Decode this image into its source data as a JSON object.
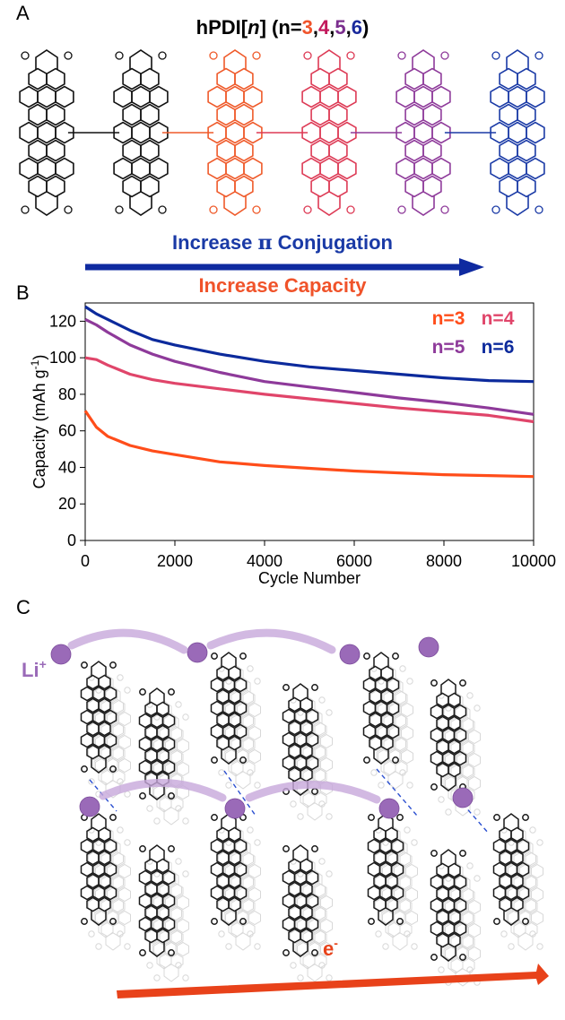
{
  "panels": {
    "a": "A",
    "b": "B",
    "c": "C"
  },
  "molecule": {
    "name": "hPDI",
    "n_symbol": "n",
    "n_prefix": "(n=",
    "n_values": [
      "3",
      "4",
      "5",
      "6"
    ],
    "n_value_colors": [
      "#f0532a",
      "#c2185b",
      "#7b2e8e",
      "#1a2a9c"
    ],
    "suffix": ")",
    "unit_colors": [
      "#111111",
      "#111111",
      "#ef5a2a",
      "#dd3a55",
      "#8e3a9a",
      "#1a3aa6"
    ]
  },
  "banner": {
    "conjugation_prefix": "Increase ",
    "conjugation_pi": "π",
    "conjugation_suffix": " Conjugation",
    "conjugation_color": "#1a3aa6",
    "capacity": "Increase  Capacity",
    "capacity_color": "#f0532a",
    "arrow_color": "#0f2aa0"
  },
  "chart_data": {
    "type": "line",
    "xlabel": "Cycle Number",
    "ylabel": "Capacity (mAh g",
    "ylabel_sup": "-1",
    "ylabel_close": ")",
    "xlim": [
      0,
      10000
    ],
    "ylim": [
      0,
      130
    ],
    "xticks": [
      0,
      2000,
      4000,
      6000,
      8000,
      10000
    ],
    "yticks": [
      0,
      20,
      40,
      60,
      80,
      100,
      120
    ],
    "grid": false,
    "legend_position": "top-right",
    "x": [
      0,
      250,
      500,
      1000,
      1500,
      2000,
      3000,
      4000,
      5000,
      6000,
      7000,
      8000,
      9000,
      10000
    ],
    "series": [
      {
        "name": "n=3",
        "color": "#ff4d1a",
        "values": [
          71,
          62,
          57,
          52,
          49,
          47,
          43,
          41,
          39.5,
          38,
          37,
          36,
          35.5,
          35
        ]
      },
      {
        "name": "n=4",
        "color": "#e0456a",
        "values": [
          100,
          99,
          96,
          91,
          88,
          86,
          83,
          80,
          77.5,
          75,
          72.5,
          70.5,
          68.5,
          65
        ]
      },
      {
        "name": "n=5",
        "color": "#8e3a9a",
        "values": [
          121,
          118,
          114,
          107,
          102,
          98,
          92,
          87,
          84,
          81,
          78,
          75.5,
          72.5,
          69
        ]
      },
      {
        "name": "n=6",
        "color": "#0c2a9c",
        "values": [
          128,
          124,
          121,
          115,
          110,
          107,
          102,
          98,
          95,
          93,
          91,
          89,
          87.5,
          87
        ]
      }
    ]
  },
  "assembly": {
    "ion_label": "Li",
    "ion_charge": "+",
    "electron_label": "e",
    "electron_charge": "-",
    "ion_color": "#9a6ab8",
    "arrow_color": "#e8421a"
  }
}
